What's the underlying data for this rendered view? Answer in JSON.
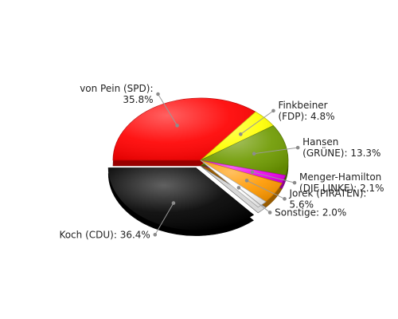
{
  "chart_data": {
    "type": "pie",
    "title": "",
    "slices": [
      {
        "line1": "von Pein (SPD):",
        "line2": "35.8%",
        "value": 35.8,
        "color": "#ff0000"
      },
      {
        "line1": "Finkbeiner",
        "line2": "(FDP): 4.8%",
        "value": 4.8,
        "color": "#ffff00"
      },
      {
        "line1": "Hansen",
        "line2": "(GRÜNE): 13.3%",
        "value": 13.3,
        "color": "#6e9a00"
      },
      {
        "line1": "Menger-Hamilton",
        "line2": "(DIE LINKE): 2.1%",
        "value": 2.1,
        "color": "#ee00ee"
      },
      {
        "line1": "Jorek (PIRATEN):",
        "line2": "5.6%",
        "value": 5.6,
        "color": "#ff9900"
      },
      {
        "line1": "Sonstige: 2.0%",
        "line2": "",
        "value": 2.0,
        "color": "#ffffff"
      },
      {
        "line1": "Koch (CDU): 36.4%",
        "line2": "",
        "value": 36.4,
        "color": "#000000",
        "exploded": true
      }
    ]
  }
}
